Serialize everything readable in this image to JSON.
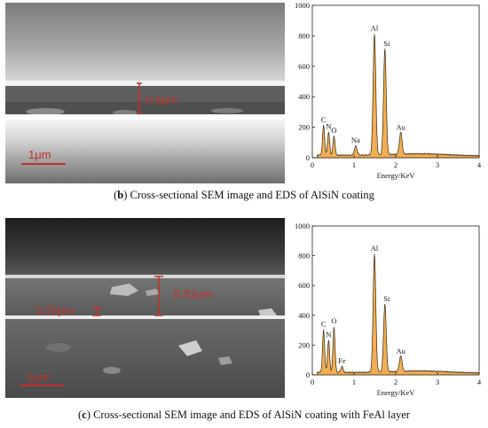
{
  "panel_b": {
    "caption_letter": "b",
    "caption_text": " Cross-sectional SEM image and EDS of AlSiN coating",
    "sem": {
      "thickness_label": "0.8μm",
      "scale_label": "1μm"
    }
  },
  "panel_c": {
    "caption_letter": "c",
    "caption_text": " Cross-sectional SEM image and EDS of AlSiN coating with FeAl layer",
    "sem": {
      "thickness_label_top": "0.91μm",
      "thickness_label_bottom": "0.25μm",
      "scale_label": "1μm"
    }
  },
  "colors": {
    "annotation_red": "#c0312b",
    "eds_fill": "#f0a540",
    "eds_line": "#3a2a10"
  },
  "chart_data": [
    {
      "type": "area",
      "xlabel": "Energy/KeV",
      "ylabel": "",
      "xlim": [
        0,
        4
      ],
      "ylim": [
        0,
        1000
      ],
      "xticks": [
        "0",
        "1",
        "2",
        "3",
        "4"
      ],
      "yticks": [
        "0",
        "200",
        "400",
        "600",
        "800",
        "1000"
      ],
      "peaks": [
        {
          "label": "C",
          "x": 0.27,
          "y": 210
        },
        {
          "label": "N",
          "x": 0.39,
          "y": 165
        },
        {
          "label": "O",
          "x": 0.52,
          "y": 140
        },
        {
          "label": "Na",
          "x": 1.04,
          "y": 75
        },
        {
          "label": "Al",
          "x": 1.49,
          "y": 810
        },
        {
          "label": "Si",
          "x": 1.74,
          "y": 710
        },
        {
          "label": "Au",
          "x": 2.12,
          "y": 160
        }
      ]
    },
    {
      "type": "area",
      "xlabel": "Energy/KeV",
      "ylabel": "",
      "xlim": [
        0,
        4
      ],
      "ylim": [
        0,
        1000
      ],
      "xticks": [
        "0",
        "1",
        "2",
        "3",
        "4"
      ],
      "yticks": [
        "0",
        "200",
        "400",
        "600",
        "800",
        "1000"
      ],
      "peaks": [
        {
          "label": "C",
          "x": 0.27,
          "y": 300
        },
        {
          "label": "N",
          "x": 0.39,
          "y": 230
        },
        {
          "label": "O",
          "x": 0.52,
          "y": 320
        },
        {
          "label": "Fe",
          "x": 0.71,
          "y": 55
        },
        {
          "label": "Al",
          "x": 1.49,
          "y": 810
        },
        {
          "label": "Si",
          "x": 1.74,
          "y": 470
        },
        {
          "label": "Au",
          "x": 2.12,
          "y": 120
        }
      ]
    }
  ]
}
